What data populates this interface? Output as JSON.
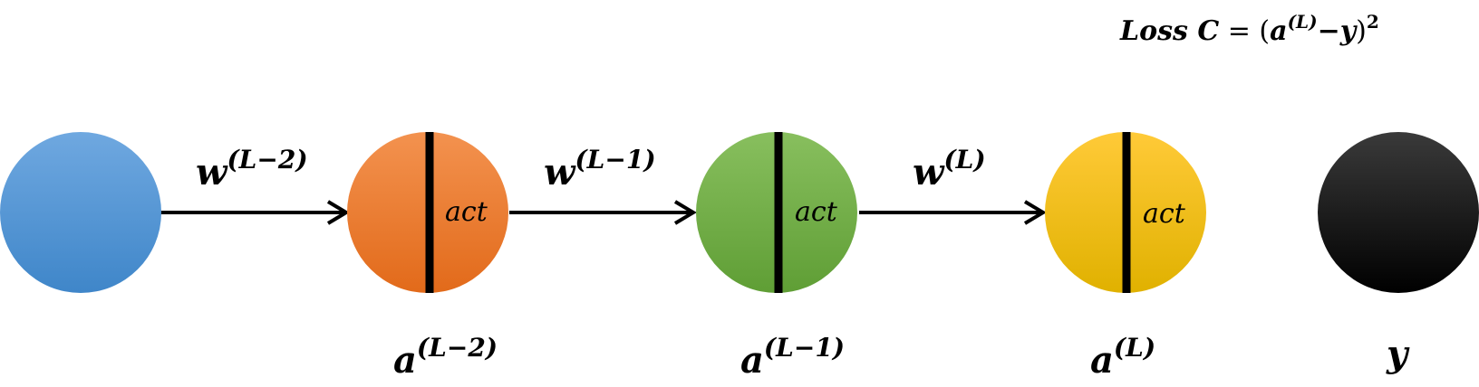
{
  "loss": {
    "prefix": "Loss C",
    "eq": " = (",
    "a": "a",
    "a_sup": "(L)",
    "minus_y": "−y",
    "close": ")",
    "power": "2"
  },
  "weights": [
    {
      "base": "w",
      "sup": "(L−2)"
    },
    {
      "base": "w",
      "sup": "(L−1)"
    },
    {
      "base": "w",
      "sup": "(L)"
    }
  ],
  "neurons": [
    {
      "act": "",
      "color_top": "#6fa8e0",
      "color_bottom": "#3f86c9"
    },
    {
      "act": "act",
      "color_top": "#f3924f",
      "color_bottom": "#e26a1a"
    },
    {
      "act": "act",
      "color_top": "#88bf5e",
      "color_bottom": "#5f9e35"
    },
    {
      "act": "act",
      "color_top": "#ffca38",
      "color_bottom": "#e0b100"
    },
    {
      "act": "",
      "color_top": "#3a3a3a",
      "color_bottom": "#000000"
    }
  ],
  "activations": [
    {
      "base": "a",
      "sup": "(L−2)"
    },
    {
      "base": "a",
      "sup": "(L−1)"
    },
    {
      "base": "a",
      "sup": "(L)"
    }
  ],
  "target": {
    "label": "y"
  }
}
